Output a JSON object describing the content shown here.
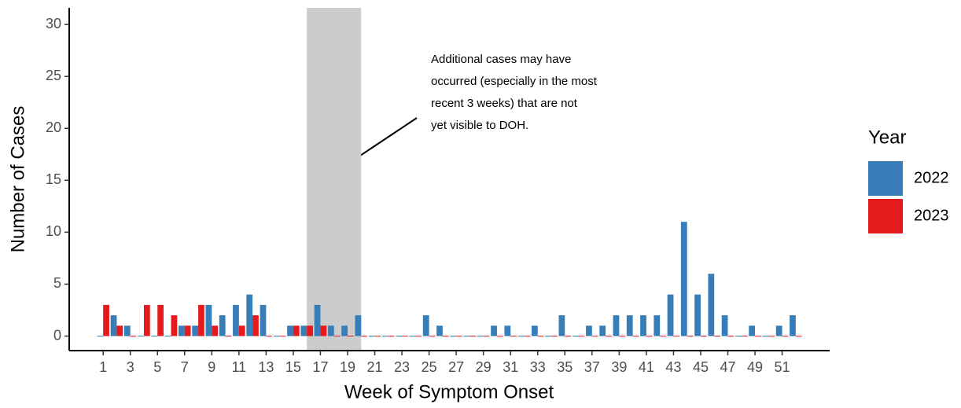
{
  "chart_data": {
    "type": "bar",
    "x_label": "Week of Symptom Onset",
    "y_label": "Number of Cases",
    "x": [
      1,
      2,
      3,
      4,
      5,
      6,
      7,
      8,
      9,
      10,
      11,
      12,
      13,
      14,
      15,
      16,
      17,
      18,
      19,
      20,
      21,
      22,
      23,
      24,
      25,
      26,
      27,
      28,
      29,
      30,
      31,
      32,
      33,
      34,
      35,
      36,
      37,
      38,
      39,
      40,
      41,
      42,
      43,
      44,
      45,
      46,
      47,
      48,
      49,
      50,
      51,
      52
    ],
    "series": [
      {
        "name": "2022",
        "color": "#377eb8",
        "values": [
          0,
          2,
          1,
          0,
          0,
          0,
          1,
          1,
          3,
          2,
          3,
          4,
          3,
          0,
          1,
          1,
          3,
          1,
          1,
          2,
          0,
          0,
          0,
          0,
          2,
          1,
          0,
          0,
          0,
          1,
          1,
          0,
          1,
          0,
          2,
          0,
          1,
          1,
          2,
          2,
          2,
          2,
          4,
          11,
          4,
          6,
          2,
          0,
          1,
          0,
          1,
          2
        ]
      },
      {
        "name": "2023",
        "color": "#e41a1c",
        "values": [
          3,
          1,
          0,
          3,
          3,
          2,
          1,
          3,
          1,
          0,
          1,
          2,
          0,
          0,
          1,
          1,
          1,
          0,
          0,
          0,
          0,
          0,
          0,
          0,
          0,
          0,
          0,
          0,
          0,
          0,
          0,
          0,
          0,
          0,
          0,
          0,
          0,
          0,
          0,
          0,
          0,
          0,
          0,
          0,
          0,
          0,
          0,
          0,
          0,
          0,
          0,
          0
        ]
      }
    ],
    "xlim": [
      -1.5,
      54.5
    ],
    "xticks": [
      1,
      3,
      5,
      7,
      9,
      11,
      13,
      15,
      17,
      19,
      21,
      23,
      25,
      27,
      29,
      31,
      33,
      35,
      37,
      39,
      41,
      43,
      45,
      47,
      49,
      51
    ],
    "ylim": [
      -1.4,
      31.6
    ],
    "yticks": [
      0,
      5,
      10,
      15,
      20,
      25,
      30
    ],
    "shaded_weeks": [
      16,
      20
    ],
    "annotation": [
      "Additional cases may have",
      "occurred (especially in the most",
      "recent 3 weeks) that are not",
      "yet visible to DOH."
    ],
    "legend_title": "Year",
    "legend_position": "right"
  }
}
